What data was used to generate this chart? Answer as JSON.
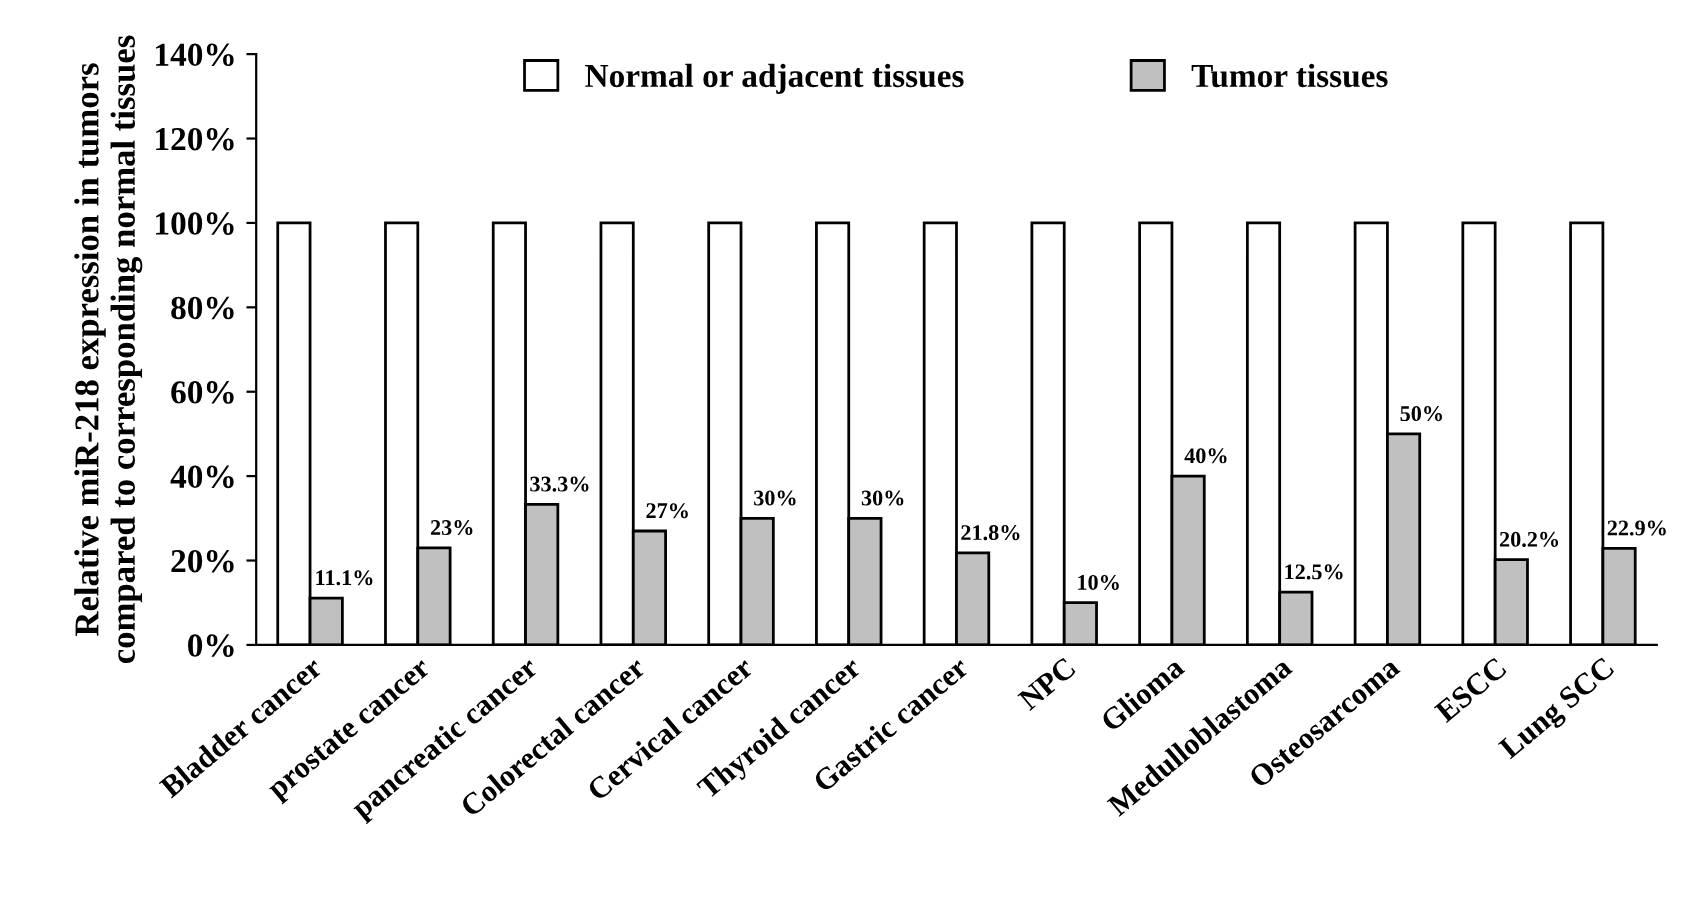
{
  "chart_data": {
    "type": "bar",
    "ylabel": "Relative miR-218 expression in tumors\ncompared to corresponding normal tissues",
    "categories": [
      "Bladder cancer",
      "prostate cancer",
      "pancreatic cancer",
      "Colorectal cancer",
      "Cervical cancer",
      "Thyroid cancer",
      "Gastric cancer",
      "NPC",
      "Glioma",
      "Medulloblastoma",
      "Osteosarcoma",
      "ESCC",
      "Lung SCC"
    ],
    "series": [
      {
        "name": "Normal or adjacent tissues",
        "color": "#ffffff",
        "values": [
          100,
          100,
          100,
          100,
          100,
          100,
          100,
          100,
          100,
          100,
          100,
          100,
          100
        ]
      },
      {
        "name": "Tumor tissues",
        "color": "#c0c0c0",
        "values": [
          11.1,
          23,
          33.3,
          27,
          30,
          30,
          21.8,
          10,
          40,
          12.5,
          50,
          20.2,
          22.9
        ],
        "value_labels": [
          "11.1%",
          "23%",
          "33.3%",
          "27%",
          "30%",
          "30%",
          "21.8%",
          "10%",
          "40%",
          "12.5%",
          "50%",
          "20.2%",
          "22.9%"
        ]
      }
    ],
    "ylim": [
      0,
      140
    ],
    "yticks": [
      {
        "value": 0,
        "label": "0%"
      },
      {
        "value": 20,
        "label": "20%"
      },
      {
        "value": 40,
        "label": "40%"
      },
      {
        "value": 60,
        "label": "60%"
      },
      {
        "value": 80,
        "label": "80%"
      },
      {
        "value": 100,
        "label": "100%"
      },
      {
        "value": 120,
        "label": "120%"
      },
      {
        "value": 140,
        "label": "140%"
      }
    ],
    "grid": false,
    "legend": "top"
  }
}
